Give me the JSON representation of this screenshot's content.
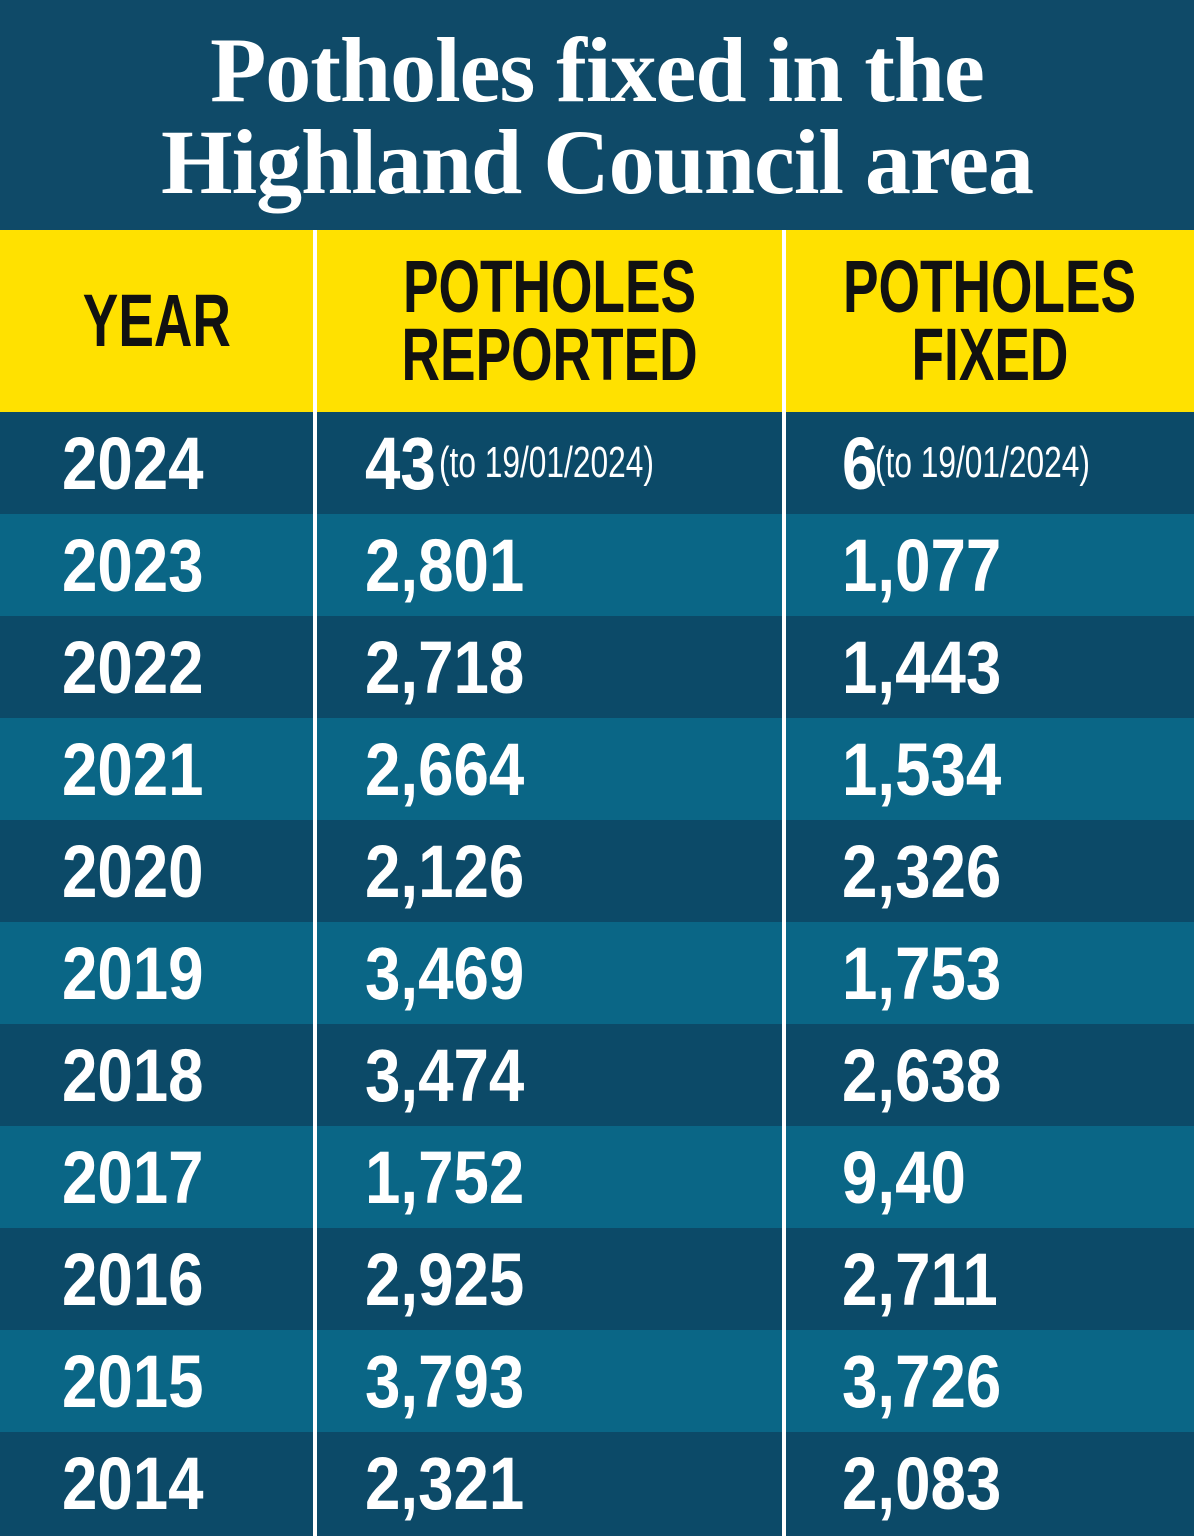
{
  "title": {
    "lines": [
      "Potholes fixed in the",
      "Highland Council area"
    ]
  },
  "table": {
    "header": {
      "year": [
        "YEAR"
      ],
      "reported": [
        "POTHOLES",
        "REPORTED"
      ],
      "fixed": [
        "POTHOLES",
        "FIXED"
      ]
    },
    "rows": [
      {
        "year": "2024",
        "reported": "43",
        "reported_note": "(to 19/01/2024)",
        "fixed": "6",
        "fixed_note": "(to 19/01/2024)"
      },
      {
        "year": "2023",
        "reported": "2,801",
        "fixed": "1,077"
      },
      {
        "year": "2022",
        "reported": "2,718",
        "fixed": "1,443"
      },
      {
        "year": "2021",
        "reported": "2,664",
        "fixed": "1,534"
      },
      {
        "year": "2020",
        "reported": "2,126",
        "fixed": "2,326"
      },
      {
        "year": "2019",
        "reported": "3,469",
        "fixed": "1,753"
      },
      {
        "year": "2018",
        "reported": "3,474",
        "fixed": "2,638"
      },
      {
        "year": "2017",
        "reported": "1,752",
        "fixed": "9,40"
      },
      {
        "year": "2016",
        "reported": "2,925",
        "fixed": "2,711"
      },
      {
        "year": "2015",
        "reported": "3,793",
        "fixed": "3,726"
      },
      {
        "year": "2014",
        "reported": "2,321",
        "fixed": "2,083"
      }
    ]
  }
}
